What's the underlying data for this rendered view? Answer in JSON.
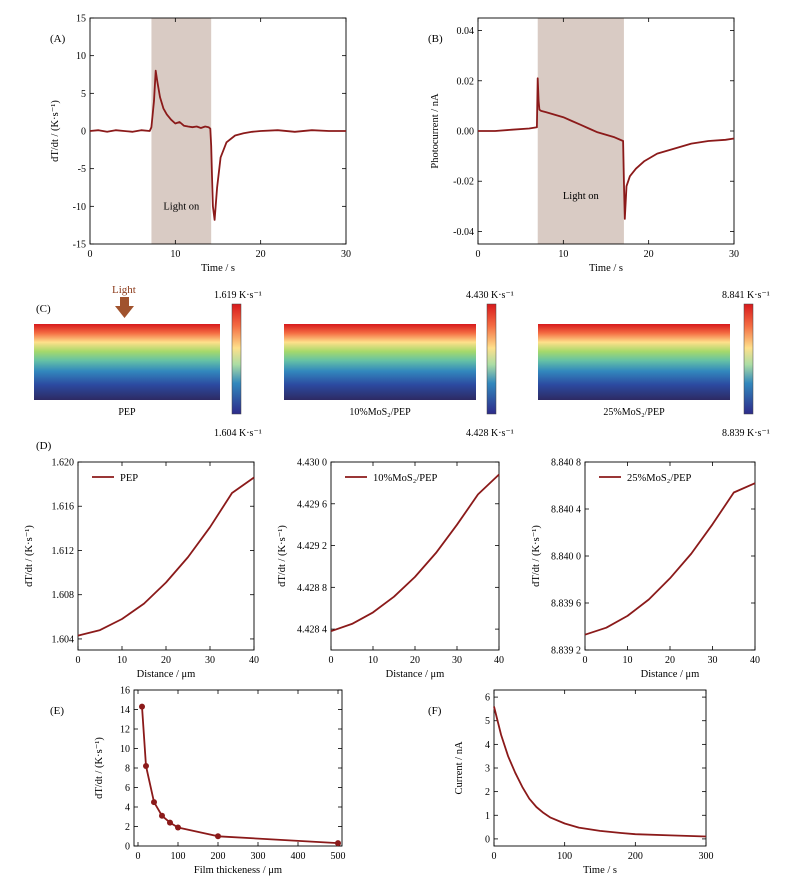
{
  "chart_data": [
    {
      "panel": "(A)",
      "type": "line",
      "xlabel": "Time / s",
      "ylabel": "dT/dt / (K·s⁻¹)",
      "xlim": [
        0,
        30
      ],
      "ylim": [
        -15,
        15
      ],
      "xticks": [
        "0",
        "10",
        "20",
        "30"
      ],
      "yticks": [
        "-15",
        "-10",
        "-5",
        "0",
        "5",
        "10",
        "15"
      ],
      "shaded": [
        7.2,
        14.2
      ],
      "annotation": "Light on",
      "x": [
        0,
        1,
        2,
        3,
        4,
        5,
        6,
        7,
        7.2,
        7.5,
        7.7,
        7.9,
        8.2,
        8.6,
        9,
        9.5,
        10,
        10.5,
        11,
        11.5,
        12,
        12.5,
        13,
        13.5,
        13.9,
        14.1,
        14.2,
        14.3,
        14.4,
        14.6,
        14.9,
        15.3,
        16,
        17,
        18,
        19,
        20,
        22,
        24,
        26,
        28,
        30
      ],
      "y": [
        0,
        0.1,
        -0.1,
        0.1,
        0,
        -0.1,
        0.1,
        0,
        0.5,
        4,
        8,
        6.5,
        4.5,
        3,
        2.2,
        1.5,
        1.0,
        1.2,
        0.7,
        0.6,
        0.5,
        0.6,
        0.4,
        0.6,
        0.5,
        0.3,
        -2,
        -6,
        -10,
        -11.8,
        -7.5,
        -3.5,
        -1.5,
        -0.6,
        -0.3,
        -0.1,
        0,
        0.1,
        -0.1,
        0.1,
        0,
        0
      ],
      "color": "#8b1a1a",
      "shade_color": "#d9cbc4"
    },
    {
      "panel": "(B)",
      "type": "line",
      "xlabel": "Time / s",
      "ylabel": "Photocurrent / nA",
      "xlim": [
        0,
        30
      ],
      "ylim": [
        -0.045,
        0.045
      ],
      "xticks": [
        "0",
        "10",
        "20",
        "30"
      ],
      "yticks": [
        "-0.04",
        "-0.02",
        "0.00",
        "0.02",
        "0.04"
      ],
      "shaded": [
        7.0,
        17.1
      ],
      "annotation": "Light on",
      "x": [
        0,
        2,
        4,
        6,
        6.9,
        7.0,
        7.1,
        7.2,
        7.4,
        8,
        9,
        10,
        11,
        12,
        13,
        14,
        15,
        16,
        17,
        17.1,
        17.2,
        17.4,
        17.8,
        18.5,
        19.5,
        21,
        23,
        25,
        27,
        29,
        30
      ],
      "y": [
        0,
        0,
        0.0005,
        0.001,
        0.0015,
        0.021,
        0.012,
        0.0085,
        0.008,
        0.0075,
        0.0065,
        0.0055,
        0.004,
        0.0025,
        0.001,
        -0.0005,
        -0.0015,
        -0.0025,
        -0.004,
        -0.02,
        -0.035,
        -0.022,
        -0.018,
        -0.015,
        -0.012,
        -0.009,
        -0.007,
        -0.005,
        -0.004,
        -0.0035,
        -0.003
      ],
      "color": "#8b1a1a",
      "shade_color": "#d9cbc4"
    },
    {
      "panel": "(D)",
      "type": "line",
      "legend": "PEP",
      "xlabel": "Distance / μm",
      "ylabel": "dT/dt / (K·s⁻¹)",
      "xlim": [
        0,
        40
      ],
      "ylim": [
        1.603,
        1.62
      ],
      "xticks": [
        "0",
        "10",
        "20",
        "30",
        "40"
      ],
      "yticks": [
        "1.604",
        "1.608",
        "1.612",
        "1.616",
        "1.620"
      ],
      "x": [
        0,
        5,
        10,
        15,
        20,
        25,
        30,
        35,
        40
      ],
      "y": [
        1.6043,
        1.6048,
        1.6058,
        1.6072,
        1.6091,
        1.6114,
        1.6141,
        1.6172,
        1.6186
      ],
      "color": "#8b1a1a"
    },
    {
      "panel": "(D2)",
      "type": "line",
      "legend": "10%MoS₂/PEP",
      "xlabel": "Distance / μm",
      "ylabel": "dT/dt / (K·s⁻¹)",
      "xlim": [
        0,
        40
      ],
      "ylim": [
        4.4282,
        4.43
      ],
      "xticks": [
        "0",
        "10",
        "20",
        "30",
        "40"
      ],
      "yticks": [
        "4.428 4",
        "4.428 8",
        "4.429 2",
        "4.429 6",
        "4.430 0"
      ],
      "x": [
        0,
        5,
        10,
        15,
        20,
        25,
        30,
        35,
        40
      ],
      "y": [
        4.42838,
        4.42845,
        4.42856,
        4.42871,
        4.4289,
        4.42913,
        4.4294,
        4.42969,
        4.42988
      ],
      "color": "#8b1a1a"
    },
    {
      "panel": "(D3)",
      "type": "line",
      "legend": "25%MoS₂/PEP",
      "xlabel": "Distance / μm",
      "ylabel": "dT/dt / (K·s⁻¹)",
      "xlim": [
        0,
        40
      ],
      "ylim": [
        8.8392,
        8.8408
      ],
      "xticks": [
        "0",
        "10",
        "20",
        "30",
        "40"
      ],
      "yticks": [
        "8.839 2",
        "8.839 6",
        "8.840 0",
        "8.840 4",
        "8.840 8"
      ],
      "x": [
        0,
        5,
        10,
        15,
        20,
        25,
        30,
        35,
        40
      ],
      "y": [
        8.83933,
        8.83939,
        8.83949,
        8.83963,
        8.83981,
        8.84002,
        8.84027,
        8.84054,
        8.84062
      ],
      "color": "#8b1a1a"
    },
    {
      "panel": "(E)",
      "type": "line",
      "xlabel": "Film thickeness / μm",
      "ylabel": "dT/dt / (K·s⁻¹)",
      "xlim": [
        -10,
        510
      ],
      "ylim": [
        0,
        16
      ],
      "xticks": [
        "0",
        "100",
        "200",
        "300",
        "400",
        "500"
      ],
      "yticks": [
        "0",
        "2",
        "4",
        "6",
        "8",
        "10",
        "12",
        "14",
        "16"
      ],
      "x": [
        10,
        20,
        40,
        60,
        80,
        100,
        200,
        500
      ],
      "y": [
        14.3,
        8.2,
        4.5,
        3.1,
        2.4,
        1.9,
        1.0,
        0.3
      ],
      "color": "#8b1a1a"
    },
    {
      "panel": "(F)",
      "type": "line",
      "xlabel": "Time / s",
      "ylabel": "Current / nA",
      "xlim": [
        0,
        300
      ],
      "ylim": [
        -0.3,
        6.3
      ],
      "xticks": [
        "0",
        "100",
        "200",
        "300"
      ],
      "yticks": [
        "0",
        "1",
        "2",
        "3",
        "4",
        "5",
        "6"
      ],
      "x": [
        0,
        10,
        20,
        30,
        40,
        50,
        60,
        70,
        80,
        100,
        120,
        150,
        180,
        200,
        250,
        300
      ],
      "y": [
        5.6,
        4.4,
        3.5,
        2.8,
        2.2,
        1.7,
        1.35,
        1.1,
        0.9,
        0.65,
        0.48,
        0.34,
        0.25,
        0.2,
        0.15,
        0.1
      ],
      "color": "#8b1a1a"
    }
  ],
  "panel_c": {
    "label": "(C)",
    "light_label": "Light",
    "films": [
      {
        "name": "PEP",
        "max": "1.619 K·s⁻¹",
        "min": "1.604 K·s⁻¹"
      },
      {
        "name": "10%MoS₂/PEP",
        "max": "4.430 K·s⁻¹",
        "min": "4.428 K·s⁻¹"
      },
      {
        "name": "25%MoS₂/PEP",
        "max": "8.841 K·s⁻¹",
        "min": "8.839 K·s⁻¹"
      }
    ]
  },
  "panel_d_label": "(D)"
}
